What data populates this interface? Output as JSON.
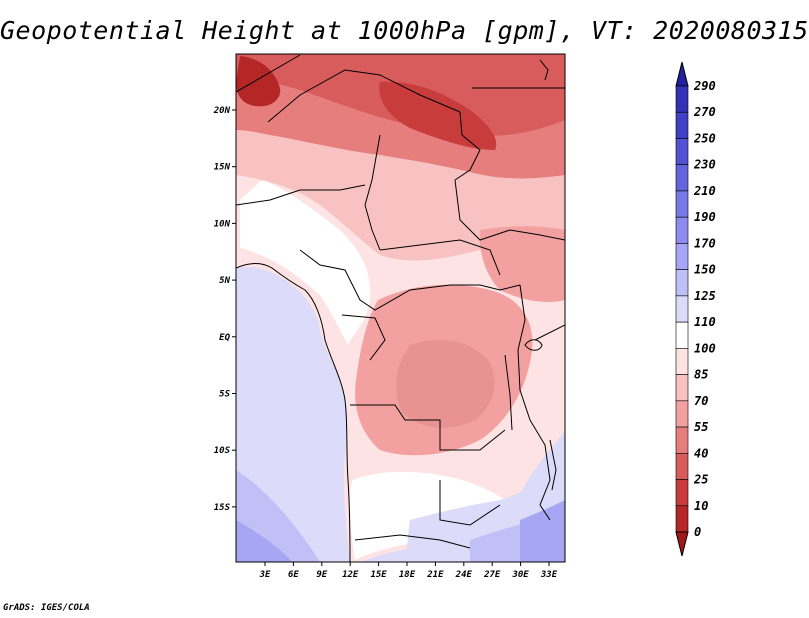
{
  "title": "Geopotential Height at 1000hPa [gpm], VT: 2020080315",
  "credit": "GrADS: IGES/COLA",
  "map": {
    "lat_labels": [
      "20N",
      "15N",
      "10N",
      "5N",
      "EQ",
      "5S",
      "10S",
      "15S"
    ],
    "lon_labels": [
      "3E",
      "6E",
      "9E",
      "12E",
      "15E",
      "18E",
      "21E",
      "24E",
      "27E",
      "30E",
      "33E"
    ],
    "lat_range": [
      -20,
      24.5
    ],
    "lon_range": [
      0,
      35
    ]
  },
  "colorbar": {
    "levels": [
      "290",
      "270",
      "250",
      "230",
      "210",
      "190",
      "170",
      "150",
      "125",
      "110",
      "100",
      "85",
      "70",
      "55",
      "40",
      "25",
      "10",
      "0"
    ],
    "colors": [
      "#2222a0",
      "#3232b4",
      "#4040c6",
      "#5252d2",
      "#6464dc",
      "#7878e6",
      "#8c8cee",
      "#a6a6f4",
      "#c0c0f6",
      "#dcdcfa",
      "#ffffff",
      "#fde3e3",
      "#f9c2c2",
      "#f2a0a0",
      "#e67e7e",
      "#d85c5c",
      "#c83c3c",
      "#b52626",
      "#a01818"
    ]
  },
  "colors": {
    "ocean": "#dcdcfa",
    "boundary": "#000000"
  }
}
